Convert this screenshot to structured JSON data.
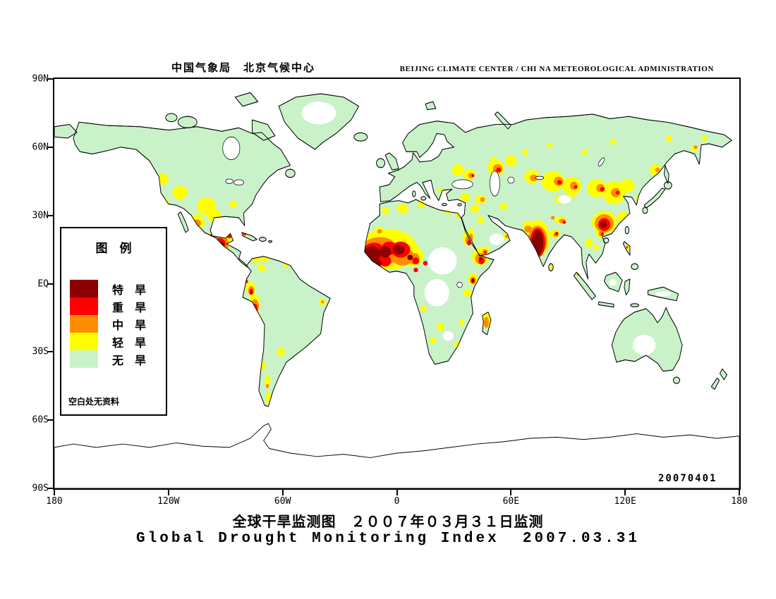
{
  "header": {
    "title_cn": "中国气象局　北京气候中心",
    "title_en": "BEIJING CLIMATE CENTER / CHI NA METEOROLOGICAL ADMINISTRATION"
  },
  "map": {
    "date_stamp": "20070401",
    "land_color": "#c9f2c9",
    "ocean_color": "#ffffff",
    "axes": {
      "lat_ticks": [
        "90N",
        "60N",
        "30N",
        "EQ",
        "30S",
        "60S",
        "90S"
      ],
      "lon_ticks": [
        "180",
        "120W",
        "60W",
        "0",
        "60E",
        "120E",
        "180"
      ]
    }
  },
  "legend": {
    "title": "图　例",
    "items": [
      {
        "label": "特　旱",
        "key": "extreme",
        "color": "#8b0000"
      },
      {
        "label": "重　旱",
        "key": "severe",
        "color": "#ff0000"
      },
      {
        "label": "中　旱",
        "key": "moderate",
        "color": "#ff8c00"
      },
      {
        "label": "轻　旱",
        "key": "light",
        "color": "#ffff00"
      },
      {
        "label": "无　旱",
        "key": "none",
        "color": "#c9f2c9"
      }
    ],
    "note": "空白处无资料"
  },
  "footer": {
    "caption_cn": "全球干旱监测图　２００７年０３月３１日监测",
    "caption_en": "Global Drought Monitoring Index  2007.03.31"
  }
}
